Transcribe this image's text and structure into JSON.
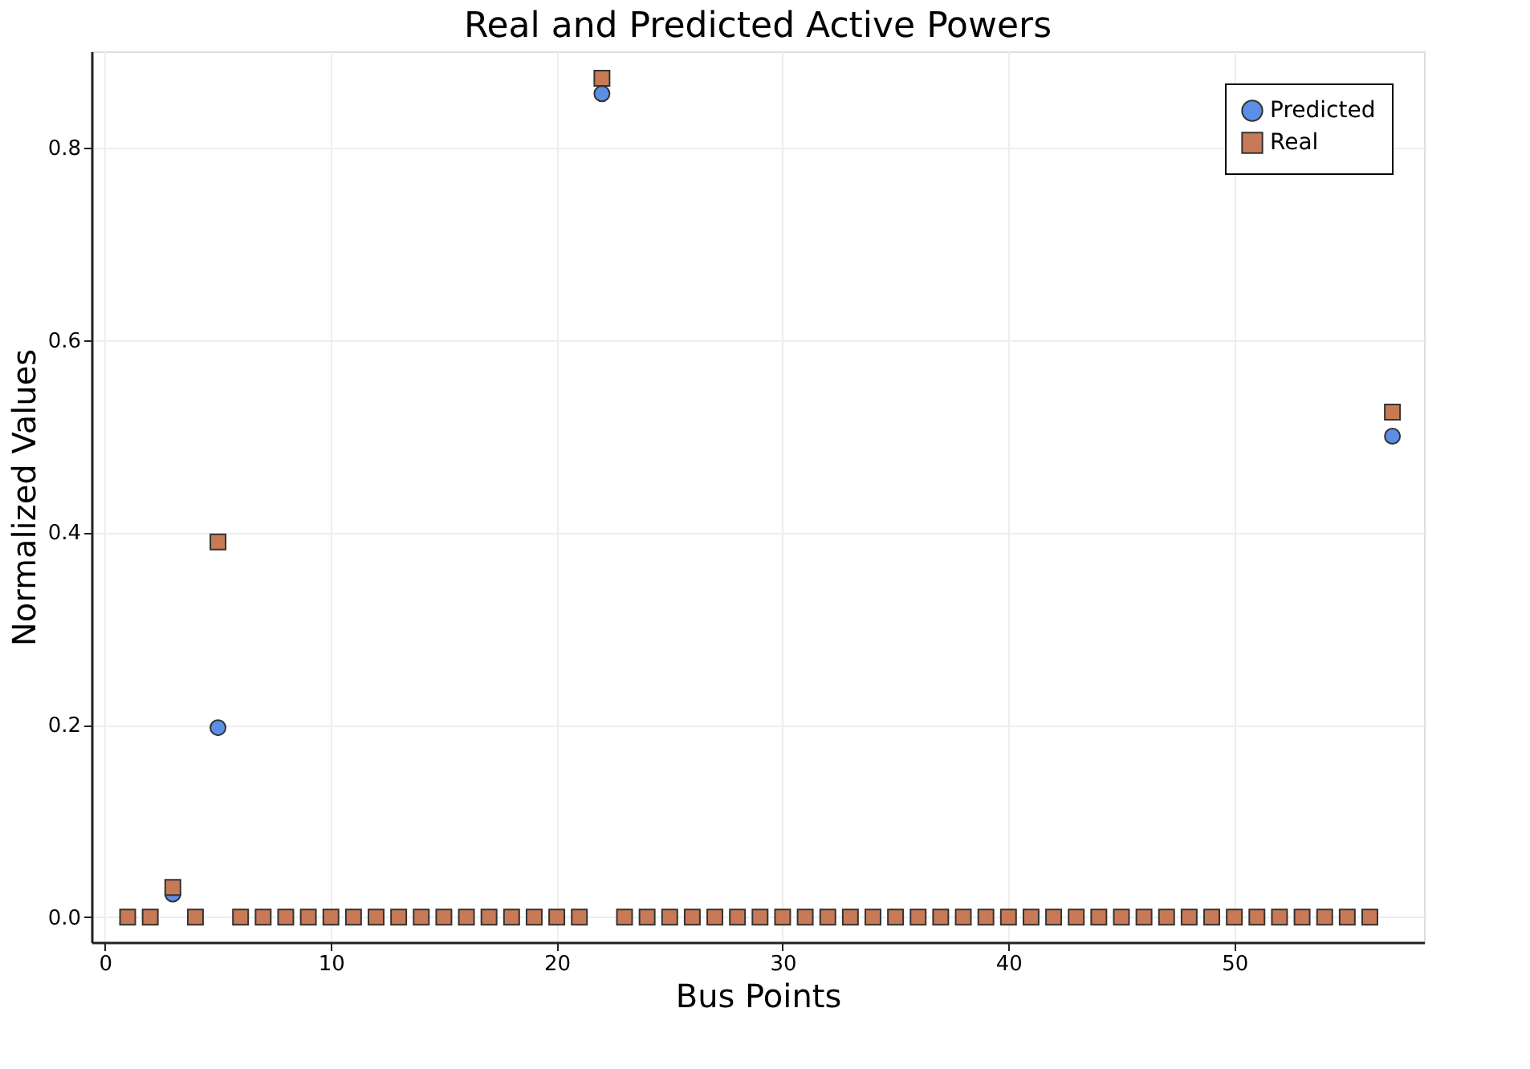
{
  "chart_data": {
    "type": "scatter",
    "title": "Real and Predicted Active Powers",
    "xlabel": "Bus Points",
    "ylabel": "Normalized Values",
    "x": [
      1,
      2,
      3,
      4,
      5,
      6,
      7,
      8,
      9,
      10,
      11,
      12,
      13,
      14,
      15,
      16,
      17,
      18,
      19,
      20,
      21,
      22,
      23,
      24,
      25,
      26,
      27,
      28,
      29,
      30,
      31,
      32,
      33,
      34,
      35,
      36,
      37,
      38,
      39,
      40,
      41,
      42,
      43,
      44,
      45,
      46,
      47,
      48,
      49,
      50,
      51,
      52,
      53,
      54,
      55,
      56,
      57
    ],
    "series": [
      {
        "name": "Predicted",
        "color": "#5b8fe6",
        "marker": "circle",
        "values": [
          null,
          null,
          0.024,
          null,
          0.197,
          null,
          null,
          null,
          null,
          null,
          null,
          null,
          null,
          null,
          null,
          null,
          null,
          null,
          null,
          null,
          null,
          0.856,
          null,
          null,
          null,
          null,
          null,
          null,
          null,
          null,
          null,
          null,
          null,
          null,
          null,
          null,
          null,
          null,
          null,
          null,
          null,
          null,
          null,
          null,
          null,
          null,
          null,
          null,
          null,
          null,
          null,
          null,
          null,
          null,
          null,
          null,
          0.5
        ]
      },
      {
        "name": "Real",
        "color": "#c87a57",
        "marker": "square",
        "values": [
          0,
          0,
          0.031,
          0,
          0.39,
          0,
          0,
          0,
          0,
          0,
          0,
          0,
          0,
          0,
          0,
          0,
          0,
          0,
          0,
          0,
          0,
          0.872,
          0,
          0,
          0,
          0,
          0,
          0,
          0,
          0,
          0,
          0,
          0,
          0,
          0,
          0,
          0,
          0,
          0,
          0,
          0,
          0,
          0,
          0,
          0,
          0,
          0,
          0,
          0,
          0,
          0,
          0,
          0,
          0,
          0,
          0,
          0.525
        ]
      }
    ],
    "xlim": [
      -0.6,
      58.4
    ],
    "ylim": [
      -0.026,
      0.9
    ],
    "xticks": [
      0,
      10,
      20,
      30,
      40,
      50
    ],
    "yticks": [
      {
        "value": 0,
        "label": "0.0"
      },
      0.2,
      0.4,
      0.6,
      0.8
    ],
    "grid": true,
    "legend": "top right"
  }
}
